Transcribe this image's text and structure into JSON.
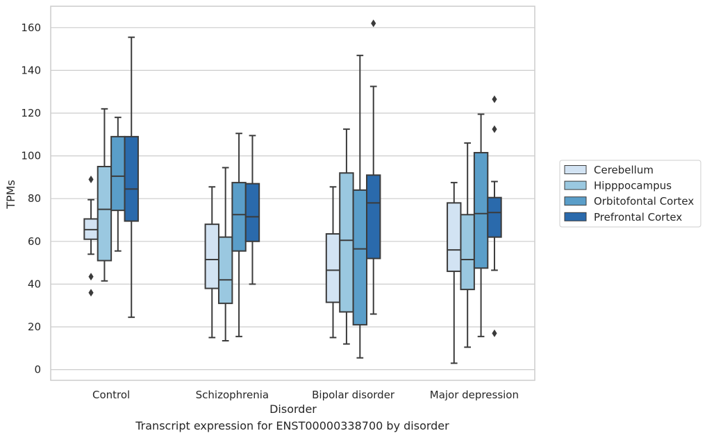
{
  "caption": "Transcript expression for ENST00000338700 by disorder",
  "chart_data": {
    "type": "box",
    "xlabel": "Disorder",
    "ylabel": "TPMs",
    "ylim": [
      -5,
      170
    ],
    "yticks": [
      0,
      20,
      40,
      60,
      80,
      100,
      120,
      140,
      160
    ],
    "grid": "horizontal",
    "legend_position": "right",
    "categories": [
      "Control",
      "Schizophrenia",
      "Bipolar disorder",
      "Major depression"
    ],
    "series": [
      {
        "name": "Cerebellum",
        "color": "#d2e3f3",
        "boxes": [
          {
            "whisker_low": 54,
            "q1": 61,
            "median": 65.5,
            "q3": 70.5,
            "whisker_high": 79.5,
            "outliers": [
              89,
              43.5,
              36
            ]
          },
          {
            "whisker_low": 15,
            "q1": 38,
            "median": 51.5,
            "q3": 68,
            "whisker_high": 85.5,
            "outliers": []
          },
          {
            "whisker_low": 15,
            "q1": 31.5,
            "median": 46.5,
            "q3": 63.5,
            "whisker_high": 85.5,
            "outliers": []
          },
          {
            "whisker_low": 3,
            "q1": 46,
            "median": 56,
            "q3": 78,
            "whisker_high": 87.5,
            "outliers": []
          }
        ]
      },
      {
        "name": "Hipppocampus",
        "color": "#9ac8e0",
        "boxes": [
          {
            "whisker_low": 41.5,
            "q1": 51,
            "median": 75,
            "q3": 95,
            "whisker_high": 122,
            "outliers": []
          },
          {
            "whisker_low": 13.5,
            "q1": 31,
            "median": 42,
            "q3": 62,
            "whisker_high": 94.5,
            "outliers": []
          },
          {
            "whisker_low": 12,
            "q1": 27,
            "median": 60.5,
            "q3": 92,
            "whisker_high": 112.5,
            "outliers": []
          },
          {
            "whisker_low": 10.5,
            "q1": 37.5,
            "median": 51.5,
            "q3": 72.5,
            "whisker_high": 106,
            "outliers": []
          }
        ]
      },
      {
        "name": "Orbitofontal Cortex",
        "color": "#5a9ec9",
        "boxes": [
          {
            "whisker_low": 55.5,
            "q1": 74.5,
            "median": 90.5,
            "q3": 109,
            "whisker_high": 118,
            "outliers": []
          },
          {
            "whisker_low": 15.5,
            "q1": 55.5,
            "median": 72.5,
            "q3": 87.5,
            "whisker_high": 110.5,
            "outliers": []
          },
          {
            "whisker_low": 5.5,
            "q1": 21,
            "median": 56.5,
            "q3": 84,
            "whisker_high": 147,
            "outliers": []
          },
          {
            "whisker_low": 15.5,
            "q1": 47.5,
            "median": 73,
            "q3": 101.5,
            "whisker_high": 119.5,
            "outliers": []
          }
        ]
      },
      {
        "name": "Prefrontal Cortex",
        "color": "#2a6aac",
        "boxes": [
          {
            "whisker_low": 24.5,
            "q1": 69.5,
            "median": 84.5,
            "q3": 109,
            "whisker_high": 155.5,
            "outliers": []
          },
          {
            "whisker_low": 40,
            "q1": 60,
            "median": 71.5,
            "q3": 87,
            "whisker_high": 109.5,
            "outliers": []
          },
          {
            "whisker_low": 26,
            "q1": 52,
            "median": 78,
            "q3": 91,
            "whisker_high": 132.5,
            "outliers": [
              162
            ]
          },
          {
            "whisker_low": 46.5,
            "q1": 62,
            "median": 73.5,
            "q3": 80.5,
            "whisker_high": 88,
            "outliers": [
              126.5,
              112.5,
              17
            ]
          }
        ]
      }
    ]
  }
}
